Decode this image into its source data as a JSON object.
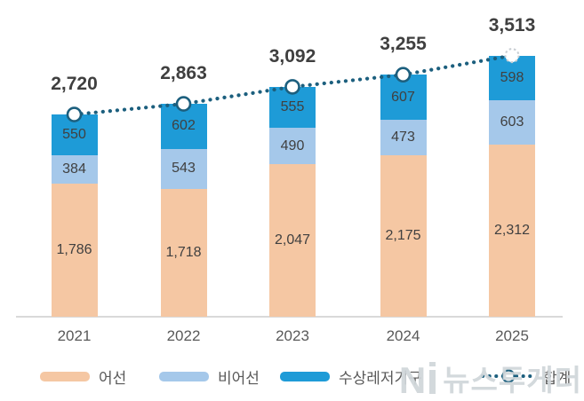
{
  "chart_data": {
    "type": "bar",
    "subtype": "stacked-bars-with-total-line",
    "categories": [
      "2021",
      "2022",
      "2023",
      "2024",
      "2025"
    ],
    "series": [
      {
        "name": "어선",
        "color": "#F5C7A3",
        "values": [
          1786,
          1718,
          2047,
          2175,
          2312
        ]
      },
      {
        "name": "비어선",
        "color": "#A5C8EA",
        "values": [
          384,
          543,
          490,
          473,
          603
        ]
      },
      {
        "name": "수상레저기구",
        "color": "#1E9BD7",
        "values": [
          550,
          602,
          555,
          607,
          598
        ]
      }
    ],
    "totals": {
      "name": "합계",
      "values": [
        2720,
        2863,
        3092,
        3255,
        3513
      ],
      "line_color": "#1C5F7E",
      "marker": "white-circle-dark-outline",
      "last_marker": "white-circle-dashed-gray-outline"
    },
    "title": "",
    "xlabel": "",
    "ylabel": "",
    "ylim": [
      0,
      3700
    ],
    "grid": false,
    "value_labels": true,
    "legend_position": "bottom"
  },
  "legend": {
    "items": [
      {
        "label": "어선",
        "swatch": "#F5C7A3",
        "kind": "bar"
      },
      {
        "label": "비어선",
        "swatch": "#A5C8EA",
        "kind": "bar"
      },
      {
        "label": "수상레저기구",
        "swatch": "#1E9BD7",
        "kind": "bar"
      },
      {
        "label": "합계",
        "swatch": "#1C5F7E",
        "kind": "dotted-line-marker"
      }
    ]
  },
  "watermark": {
    "logo": "N",
    "text": "뉴스투게더"
  },
  "colors": {
    "axis_line": "#D9D9D9",
    "axis_label": "#595959",
    "segment_label": "#404040",
    "total_label": "#3F3F3F",
    "line": "#1C5F7E",
    "last_marker_stroke": "#C8CDD2"
  }
}
